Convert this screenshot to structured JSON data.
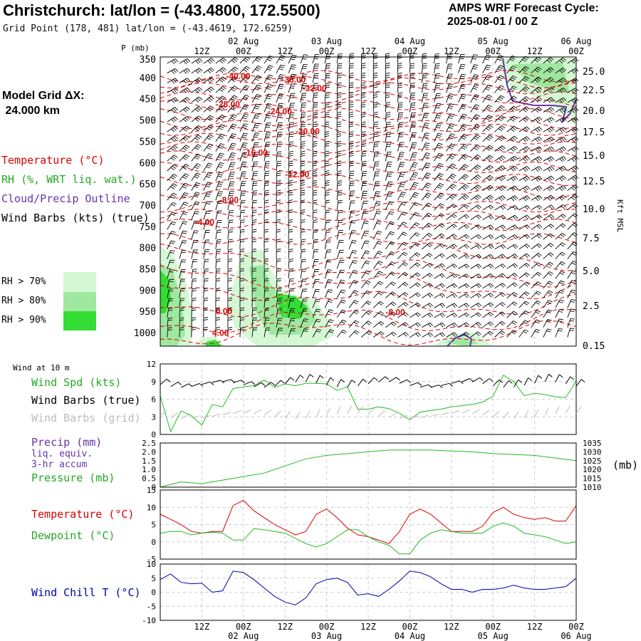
{
  "header": {
    "title": "Christchurch:  lat/lon = (-43.4800, 172.5500)",
    "gridpoint": "Grid Point (178, 481) lat/lon = (-43.4619, 172.6259)",
    "model_line1": "AMPS WRF Forecast Cycle:",
    "model_line2": "2025-08-01 / 00  Z",
    "grid_dx_line1": "Model Grid ΔX:",
    "grid_dx_line2": " 24.000 km"
  },
  "legend_upper": {
    "temperature": "Temperature (°C)",
    "rh": "RH (%, WRT liq. wat.)",
    "cloud": "Cloud/Precip Outline",
    "wind": "Wind Barbs (kts) (true)",
    "rh70": "RH > 70%",
    "rh80": "RH > 80%",
    "rh90": "RH > 90%",
    "colors": {
      "rh70": "#d4f7d4",
      "rh80": "#9fe89f",
      "rh90": "#33dd33",
      "temp": "#dd0000",
      "cloud": "#6633aa"
    }
  },
  "time_axis": {
    "top_hours": [
      "12Z",
      "00Z",
      "12Z",
      "00Z",
      "12Z",
      "00Z",
      "12Z",
      "00Z",
      "12Z",
      "00Z"
    ],
    "top_dates": [
      "02 Aug",
      "03 Aug",
      "04 Aug",
      "05 Aug",
      "06 Aug"
    ],
    "bottom_hours": [
      "12Z",
      "00Z",
      "12Z",
      "00Z",
      "12Z",
      "00Z",
      "12Z",
      "00Z",
      "12Z",
      "00Z"
    ],
    "bottom_dates": [
      "02 Aug",
      "03 Aug",
      "04 Aug",
      "05 Aug",
      "06 Aug"
    ]
  },
  "chart_data": [
    {
      "type": "heatmap",
      "name": "time-height cross section",
      "yaxis_left_label": "P (mb)",
      "yaxis_left_ticks": [
        "350",
        "400",
        "450",
        "500",
        "550",
        "600",
        "650",
        "700",
        "750",
        "800",
        "850",
        "900",
        "950",
        "1000"
      ],
      "yaxis_right_ticks": [
        "25.0",
        "22.5",
        "20.0",
        "17.5",
        "15.0",
        "12.5",
        "10.0",
        "7.5",
        "5.0",
        "2.5",
        "0.15"
      ],
      "yaxis_right_label": "Kft MSL",
      "ylim_mb": [
        350,
        1030
      ],
      "xlim_h": [
        0,
        120
      ],
      "temperature_labels": [
        {
          "text": "-40.00",
          "t": 19,
          "p": 402
        },
        {
          "text": "-36.00",
          "t": 35,
          "p": 410
        },
        {
          "text": "-32.00",
          "t": 41,
          "p": 430
        },
        {
          "text": "-28.00",
          "t": 16,
          "p": 468
        },
        {
          "text": "-24.00",
          "t": 31,
          "p": 485
        },
        {
          "text": "-20.00",
          "t": 39,
          "p": 532
        },
        {
          "text": "-16.00",
          "t": 24,
          "p": 582
        },
        {
          "text": "-12.00",
          "t": 36,
          "p": 633
        },
        {
          "text": "-8.00",
          "t": 17,
          "p": 693
        },
        {
          "text": "-4.00",
          "t": 10,
          "p": 745
        },
        {
          "text": "-8.00",
          "t": 65,
          "p": 957
        },
        {
          "text": "0.00",
          "t": 16,
          "p": 955
        },
        {
          "text": "4.00",
          "t": 15,
          "p": 1006
        }
      ],
      "temperature_contours_C": [
        -40,
        -36,
        -32,
        -28,
        -24,
        -20,
        -16,
        -12,
        -8,
        -4,
        0,
        4,
        8
      ],
      "wind_barbs": "time-height grid (kts, true)"
    },
    {
      "type": "line",
      "name": "Wind at 10 m",
      "panel_title": "Wind at 10 m",
      "legend": [
        "Wind Spd (kts)",
        "Wind Barbs (true)",
        "Wind Barbs (grid)"
      ],
      "ylim": [
        0,
        12
      ],
      "yticks": [
        "12",
        "9",
        "6",
        "3",
        "0"
      ],
      "x_hours": [
        0,
        3,
        6,
        9,
        12,
        15,
        18,
        21,
        24,
        27,
        30,
        33,
        36,
        39,
        42,
        45,
        48,
        51,
        54,
        57,
        60,
        63,
        66,
        69,
        72,
        75,
        78,
        81,
        84,
        87,
        90,
        93,
        96,
        99,
        102,
        105,
        108,
        111,
        114,
        117,
        120
      ],
      "series": [
        {
          "name": "Wind Spd (kts)",
          "color": "#22bb22",
          "values": [
            6.5,
            0.5,
            4.0,
            3.2,
            1.6,
            5.1,
            4.7,
            7.8,
            8.1,
            8.3,
            9.3,
            8.0,
            8.6,
            8.3,
            8.7,
            8.7,
            8.6,
            7.5,
            8.1,
            4.3,
            4.3,
            4.7,
            4.4,
            3.6,
            2.5,
            3.8,
            4.1,
            4.3,
            4.7,
            4.9,
            5.1,
            5.5,
            6.5,
            10.1,
            9.0,
            6.6,
            7.0,
            6.8,
            6.4,
            6.3,
            9.1
          ]
        }
      ]
    },
    {
      "type": "line",
      "name": "Precip / Pressure",
      "legend": [
        "Precip (mm)",
        "liq. equiv.",
        "3-hr accum",
        "Pressure (mb)"
      ],
      "yleft_ticks": [
        "2.5",
        "2.0",
        "1.5",
        "1.0",
        "0.5",
        "0"
      ],
      "yright_ticks": [
        "1035",
        "1030",
        "1025",
        "1020",
        "1015",
        "1010"
      ],
      "yright_label": "(mb)",
      "ylim_right": [
        1010,
        1035
      ],
      "x_hours": [
        0,
        6,
        12,
        18,
        24,
        30,
        36,
        42,
        48,
        54,
        60,
        66,
        72,
        78,
        84,
        90,
        96,
        102,
        108,
        114,
        120
      ],
      "series": [
        {
          "name": "Pressure (mb)",
          "color": "#22bb22",
          "values": [
            1010,
            1013,
            1012,
            1014,
            1016,
            1018,
            1022,
            1026,
            1028,
            1029,
            1030,
            1031,
            1031,
            1031,
            1030.5,
            1030,
            1029,
            1028.5,
            1028,
            1026.5,
            1025
          ]
        }
      ]
    },
    {
      "type": "line",
      "name": "Temperature / Dewpoint",
      "legend": [
        "Temperature (°C)",
        "Dewpoint (°C)"
      ],
      "ylim": [
        -5,
        15
      ],
      "yticks": [
        "15",
        "10",
        "5",
        "0",
        "-5"
      ],
      "x_hours": [
        0,
        3,
        6,
        9,
        12,
        15,
        18,
        21,
        24,
        27,
        30,
        33,
        36,
        39,
        42,
        45,
        48,
        51,
        54,
        57,
        60,
        63,
        66,
        69,
        72,
        75,
        78,
        81,
        84,
        87,
        90,
        93,
        96,
        99,
        102,
        105,
        108,
        111,
        114,
        117,
        120
      ],
      "series": [
        {
          "name": "Temperature (°C)",
          "color": "#dd0000",
          "values": [
            8.0,
            6.5,
            5.0,
            3.0,
            2.5,
            3.0,
            3.0,
            10.5,
            12.0,
            9.0,
            7.0,
            5.0,
            3.5,
            2.0,
            3.0,
            8.0,
            9.5,
            7.0,
            4.0,
            2.0,
            1.5,
            0.5,
            -0.5,
            3.0,
            8.0,
            9.5,
            8.0,
            5.5,
            3.0,
            3.0,
            3.0,
            4.5,
            8.5,
            10.0,
            8.0,
            7.0,
            6.5,
            7.0,
            6.0,
            6.0,
            10.5
          ]
        },
        {
          "name": "Dewpoint (°C)",
          "color": "#22bb22",
          "values": [
            2.5,
            3.0,
            3.0,
            2.0,
            2.5,
            2.8,
            2.5,
            0.5,
            0.5,
            3.8,
            3.5,
            3.0,
            2.5,
            1.0,
            -0.5,
            -1.5,
            -0.5,
            1.5,
            3.5,
            3.5,
            1.5,
            0.0,
            -1.0,
            -3.5,
            -3.5,
            0.5,
            2.5,
            3.5,
            3.0,
            2.5,
            2.5,
            2.5,
            4.5,
            5.5,
            4.5,
            2.5,
            2.0,
            1.5,
            0.5,
            -0.5,
            0.0
          ]
        }
      ]
    },
    {
      "type": "line",
      "name": "Wind Chill",
      "legend": [
        "Wind Chill T (°C)"
      ],
      "ylim": [
        -10,
        10
      ],
      "yticks": [
        "10",
        "5",
        "0",
        "-5",
        "-10"
      ],
      "x_hours": [
        0,
        3,
        6,
        9,
        12,
        15,
        18,
        21,
        24,
        27,
        30,
        33,
        36,
        39,
        42,
        45,
        48,
        51,
        54,
        57,
        60,
        63,
        66,
        69,
        72,
        75,
        78,
        81,
        84,
        87,
        90,
        93,
        96,
        99,
        102,
        105,
        108,
        111,
        114,
        117,
        120
      ],
      "series": [
        {
          "name": "Wind Chill T (°C)",
          "color": "#0000aa",
          "values": [
            4.5,
            6.5,
            3.5,
            3.0,
            3.2,
            0.0,
            0.5,
            7.5,
            7.0,
            4.5,
            1.5,
            -1.5,
            -3.5,
            -4.5,
            -2.0,
            3.0,
            4.5,
            5.0,
            3.5,
            -1.0,
            -0.5,
            -1.5,
            1.0,
            4.0,
            7.5,
            7.0,
            5.5,
            3.0,
            1.0,
            1.0,
            0.0,
            1.0,
            1.0,
            1.5,
            2.5,
            1.5,
            1.0,
            1.0,
            1.5,
            2.0,
            5.0
          ]
        }
      ]
    }
  ],
  "lower_labels": {
    "wind_title": "Wind at 10 m",
    "wind_spd": "Wind Spd (kts)",
    "wind_barbs_true": "Wind Barbs (true)",
    "wind_barbs_grid": "Wind Barbs (grid)",
    "precip1": "Precip (mm)",
    "precip2": "liq. equiv.",
    "precip3": "3-hr accum",
    "pressure": "Pressure (mb)",
    "mb": "(mb)",
    "temp": "Temperature (°C)",
    "dew": "Dewpoint (°C)",
    "chill": "Wind Chill T (°C)"
  }
}
